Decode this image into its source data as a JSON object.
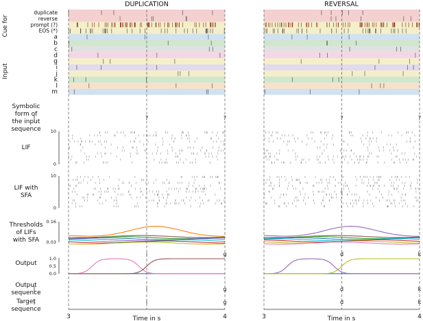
{
  "chart_data": {
    "type": "raster",
    "panels": [
      {
        "title": "DUPLICATION",
        "input_symbols": "?",
        "input_symbols_2": "?",
        "output_sequence": [
          "i",
          "g"
        ],
        "target_sequence": [
          "i",
          "g"
        ],
        "output_curve_labels": [
          "i",
          "g"
        ]
      },
      {
        "title": "REVERSAL",
        "input_symbols": "?",
        "input_symbols_2": "?",
        "output_sequence": [
          "d",
          "k"
        ],
        "target_sequence": [
          "d",
          "k"
        ],
        "output_curve_labels": [
          "d",
          "k"
        ]
      }
    ],
    "row_labels": {
      "cue_for": "Cue for",
      "input": "Input",
      "symbolic": [
        "Symbolic",
        "form of",
        "the input",
        "sequence"
      ],
      "lif": "LIF",
      "lif_sfa": [
        "LIF with",
        "SFA"
      ],
      "thresholds": [
        "Thresholds",
        "of LIFs",
        "with SFA"
      ],
      "output": "Output",
      "output_sequence": [
        "Output",
        "sequence"
      ],
      "target_sequence": [
        "Target",
        "sequence"
      ]
    },
    "input_channels": [
      "duplicate",
      "reverse",
      "prompt (?)",
      "EOS (*)",
      "a",
      "b",
      "c",
      "d",
      "g",
      "i",
      "j",
      "k",
      "l",
      "m"
    ],
    "lif_yticks": [
      "10",
      "0"
    ],
    "lif_sfa_yticks": [
      "10",
      "0"
    ],
    "threshold_yticks": [
      "0.16",
      "0.03"
    ],
    "output_yticks": [
      "1.0",
      "0.5",
      "0.0"
    ],
    "x_ticks": [
      "3",
      "4"
    ],
    "xlabel": "Time in s",
    "xlim": [
      3,
      4
    ]
  },
  "colors": {
    "pink": "#f2c8c8",
    "blue": "#c9dced",
    "green": "#c8e3c6",
    "orange": "#f7dcc0",
    "purple": "#ddd3ea",
    "yellow": "#f2ecbf",
    "gray": "#dcdcdc",
    "rose": "#f3cfe2",
    "i": "#e377c2",
    "g": "#8c564b",
    "d": "#9467bd",
    "k": "#bcbd22",
    "base": "#1f77b4"
  }
}
